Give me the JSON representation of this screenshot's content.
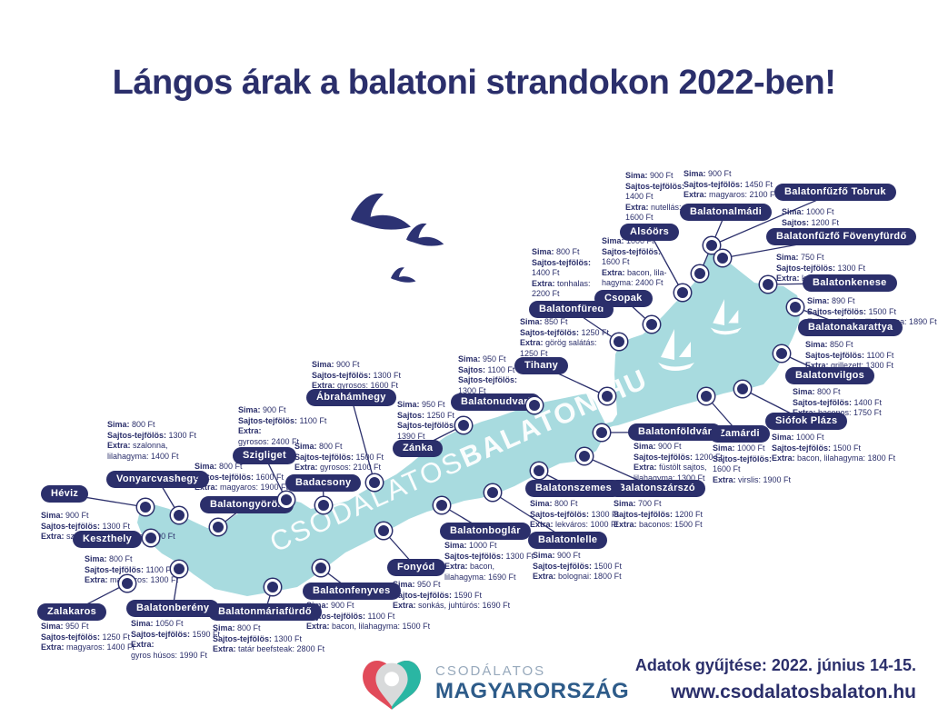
{
  "title": "Lángos árak a balatoni strandokon 2022-ben!",
  "watermark": {
    "light": "CSODALATOS",
    "bold": "BALATON.HU"
  },
  "footer": {
    "logo_top": "CSODÁLATOS",
    "logo_bottom": "MAGYARORSZÁG",
    "note": "Adatok gyűjtése: 2022. június 14-15.",
    "url": "www.csodalatosbalaton.hu"
  },
  "colors": {
    "navy": "#2b2f6b",
    "lake": "#a8dbdf",
    "logo_red": "#e14b5a",
    "logo_teal": "#2ab6a3",
    "logo_gray": "#d8dadb",
    "logo_top_text": "#97a9bc",
    "logo_bottom_text": "#2d5b89"
  },
  "locations": [
    {
      "name": "Héviz",
      "label": [
        45,
        534
      ],
      "dot": [
        160,
        558
      ],
      "text": [
        45,
        562
      ],
      "prices": [
        [
          "Sima:",
          "900 Ft"
        ],
        [
          "Sajtos-tejfölös:",
          "1300 Ft"
        ],
        [
          "Extra:",
          "szalonna, lilahagyma: 1500 Ft"
        ]
      ]
    },
    {
      "name": "Keszthely",
      "label": [
        80,
        584
      ],
      "dot": [
        166,
        592
      ],
      "text": [
        93,
        610
      ],
      "prices": [
        [
          "Sima:",
          "800 Ft"
        ],
        [
          "Sajtos-tejfölös:",
          "1100 Ft"
        ],
        [
          "Extra:",
          "magyaros: 1300 Ft"
        ]
      ]
    },
    {
      "name": "Vonyarcvashegy",
      "label": [
        117,
        518
      ],
      "dot": [
        197,
        567
      ],
      "text": [
        118,
        462
      ],
      "prices": [
        [
          "Sima:",
          "800 Ft"
        ],
        [
          "Sajtos-tejfölös:",
          "1300 Ft"
        ],
        [
          "Extra:",
          "szalonna,"
        ],
        [
          "",
          "lilahagyma: 1400 Ft"
        ]
      ]
    },
    {
      "name": "Balatongyörök",
      "label": [
        220,
        546
      ],
      "dot": [
        240,
        580
      ],
      "text": [
        214,
        508
      ],
      "prices": [
        [
          "Sima:",
          "800 Ft"
        ],
        [
          "Sajtos-tejfölös:",
          "1600 Ft"
        ],
        [
          "Extra:",
          "magyaros: 1900 Ft"
        ]
      ]
    },
    {
      "name": "Szigliget",
      "label": [
        256,
        492
      ],
      "dot": [
        315,
        550
      ],
      "text": [
        262,
        446
      ],
      "prices": [
        [
          "Sima:",
          "900 Ft"
        ],
        [
          "Sajtos-tejfölös:",
          "1100 Ft"
        ],
        [
          "Extra:",
          ""
        ],
        [
          "",
          "gyrosos: 2400 Ft"
        ]
      ]
    },
    {
      "name": "Badacsony",
      "label": [
        314,
        522
      ],
      "dot": [
        356,
        556
      ],
      "text": [
        324,
        486
      ],
      "prices": [
        [
          "Sima:",
          "800 Ft"
        ],
        [
          "Sajtos-tejfölös:",
          "1500 Ft"
        ],
        [
          "Extra:",
          "gyrosos: 2100 Ft"
        ]
      ]
    },
    {
      "name": "Ábrahámhegy",
      "label": [
        337,
        428
      ],
      "dot": [
        412,
        531
      ],
      "text": [
        343,
        396
      ],
      "prices": [
        [
          "Sima:",
          "900 Ft"
        ],
        [
          "Sajtos-tejfölös:",
          "1300 Ft"
        ],
        [
          "Extra:",
          "gyrosos: 1600 Ft"
        ]
      ]
    },
    {
      "name": "Zánka",
      "label": [
        432,
        484
      ],
      "dot": [
        510,
        468
      ],
      "text": [
        437,
        440
      ],
      "prices": [
        [
          "Sima:",
          "950 Ft"
        ],
        [
          "Sajtos:",
          "1250 Ft"
        ],
        [
          "Sajtos-tejfölös:",
          ""
        ],
        [
          "",
          "1390 Ft"
        ]
      ]
    },
    {
      "name": "Balatonudvari",
      "label": [
        496,
        433
      ],
      "dot": [
        588,
        446
      ],
      "text": [
        504,
        390
      ],
      "prices": [
        [
          "Sima:",
          "950 Ft"
        ],
        [
          "Sajtos:",
          "1100 Ft"
        ],
        [
          "Sajtos-tejfölös:",
          ""
        ],
        [
          "",
          "1300 Ft"
        ]
      ]
    },
    {
      "name": "Tihany",
      "label": [
        566,
        393
      ],
      "dot": [
        668,
        436
      ],
      "text": [
        572,
        349
      ],
      "prices": [
        [
          "Sima:",
          "850 Ft"
        ],
        [
          "Sajtos-tejfölös:",
          "1250 Ft"
        ],
        [
          "Extra:",
          "görög salátás:"
        ],
        [
          "",
          "1250 Ft"
        ]
      ]
    },
    {
      "name": "Balatonfüred",
      "label": [
        582,
        331
      ],
      "dot": [
        681,
        376
      ],
      "text": [
        585,
        272
      ],
      "prices": [
        [
          "Sima:",
          "800 Ft"
        ],
        [
          "Sajtos-tejfölös:",
          ""
        ],
        [
          "",
          "1400 Ft"
        ],
        [
          "Extra:",
          "tonhalas:"
        ],
        [
          "",
          "2200 Ft"
        ]
      ]
    },
    {
      "name": "Csopak",
      "label": [
        654,
        319
      ],
      "dot": [
        717,
        357
      ],
      "text": [
        662,
        260
      ],
      "prices": [
        [
          "Sima:",
          "1000 Ft"
        ],
        [
          "Sajtos-tejfölös:",
          ""
        ],
        [
          "",
          "1600 Ft"
        ],
        [
          "Extra:",
          "bacon, lila-"
        ],
        [
          "",
          "hagyma: 2400 Ft"
        ]
      ]
    },
    {
      "name": "Alsóörs",
      "label": [
        682,
        246
      ],
      "dot": [
        751,
        322
      ],
      "text": [
        688,
        188
      ],
      "prices": [
        [
          "Sima:",
          "900 Ft"
        ],
        [
          "Sajtos-tejfölös:",
          ""
        ],
        [
          "",
          "1400 Ft"
        ],
        [
          "Extra:",
          "nutellás:"
        ],
        [
          "",
          "1600 Ft"
        ]
      ]
    },
    {
      "name": "Balatonalmádi",
      "label": [
        748,
        224
      ],
      "dot": [
        770,
        301
      ],
      "text": [
        752,
        186
      ],
      "prices": [
        [
          "Sima:",
          "900 Ft"
        ],
        [
          "Sajtos-tejfölös:",
          "1450 Ft"
        ],
        [
          "Extra:",
          "magyaros: 2100 Ft"
        ]
      ]
    },
    {
      "name": "Balatonfűzfő Tobruk",
      "label": [
        852,
        202
      ],
      "dot": [
        783,
        270
      ],
      "text": [
        860,
        228
      ],
      "prices": [
        [
          "Sima:",
          "1000 Ft"
        ],
        [
          "Sajtos:",
          "1200 Ft"
        ],
        [
          "Sajtos-tejfölös:",
          "1300 Ft"
        ]
      ]
    },
    {
      "name": "Balatonfűzfő Fövenyfürdő",
      "label": [
        843,
        251
      ],
      "dot": [
        795,
        284
      ],
      "text": [
        854,
        278
      ],
      "prices": [
        [
          "Sima:",
          "750 Ft"
        ],
        [
          "Sajtos-tejfölös:",
          "1300 Ft"
        ],
        [
          "Extra:",
          "kolbászos: 1700 Ft"
        ]
      ]
    },
    {
      "name": "Balatonkenese",
      "label": [
        883,
        302
      ],
      "dot": [
        845,
        313
      ],
      "text": [
        888,
        326
      ],
      "prices": [
        [
          "Sima:",
          "890 Ft"
        ],
        [
          "Sajtos-tejfölös:",
          "1500 Ft"
        ],
        [
          "Extra:",
          "zöldség, lilahagyma: 1890 Ft"
        ]
      ]
    },
    {
      "name": "Balatonakarattya",
      "label": [
        878,
        351
      ],
      "dot": [
        875,
        338
      ],
      "text": [
        886,
        374
      ],
      "prices": [
        [
          "Sima:",
          "850 Ft"
        ],
        [
          "Sajtos-tejfölös:",
          "1100 Ft"
        ],
        [
          "Extra:",
          "grillezett: 1300 Ft"
        ]
      ]
    },
    {
      "name": "Balatonvilgos",
      "label": [
        864,
        404
      ],
      "dot": [
        860,
        389
      ],
      "text": [
        872,
        426
      ],
      "prices": [
        [
          "Sima:",
          "800 Ft"
        ],
        [
          "Sajtos-tejfölös:",
          "1400 Ft"
        ],
        [
          "Extra:",
          "baconos: 1750 Ft"
        ]
      ]
    },
    {
      "name": "Siófok Plázs",
      "label": [
        842,
        454
      ],
      "dot": [
        817,
        428
      ],
      "text": [
        849,
        476
      ],
      "prices": [
        [
          "Sima:",
          "1000 Ft"
        ],
        [
          "Sajtos-tejfölös:",
          "1500 Ft"
        ],
        [
          "Extra:",
          "bacon, lilahagyma: 1800 Ft"
        ]
      ]
    },
    {
      "name": "Zamárdi",
      "label": [
        780,
        468
      ],
      "dot": [
        777,
        436
      ],
      "text": [
        784,
        488
      ],
      "prices": [
        [
          "Sima:",
          "1000 Ft"
        ],
        [
          "Sajtos-tejfölös:",
          ""
        ],
        [
          "",
          "1600 Ft"
        ],
        [
          "Extra:",
          "virslis: 1900 Ft"
        ]
      ]
    },
    {
      "name": "Balatonföldvár",
      "label": [
        691,
        466
      ],
      "dot": [
        662,
        476
      ],
      "text": [
        697,
        486
      ],
      "prices": [
        [
          "Sima:",
          "900 Ft"
        ],
        [
          "Sajtos-tejfölös:",
          "1200 Ft"
        ],
        [
          "Extra:",
          "füstölt sajtos,"
        ],
        [
          "",
          "lilahagyma: 1300 Ft"
        ]
      ]
    },
    {
      "name": "Balatonszárszó",
      "label": [
        669,
        528
      ],
      "dot": [
        643,
        502
      ],
      "text": [
        675,
        549
      ],
      "prices": [
        [
          "Sima:",
          "700 Ft"
        ],
        [
          "Sajtos-tejfölös:",
          "1200 Ft"
        ],
        [
          "Extra:",
          "baconos: 1500 Ft"
        ]
      ]
    },
    {
      "name": "Balatonszemes",
      "label": [
        578,
        528
      ],
      "dot": [
        593,
        518
      ],
      "text": [
        583,
        549
      ],
      "prices": [
        [
          "Sima:",
          "800 Ft"
        ],
        [
          "Sajtos-tejfölös:",
          "1300 Ft"
        ],
        [
          "Extra:",
          "lekváros: 1000 Ft"
        ]
      ]
    },
    {
      "name": "Balatonlelle",
      "label": [
        581,
        585
      ],
      "dot": [
        542,
        542
      ],
      "text": [
        586,
        606
      ],
      "prices": [
        [
          "Sima:",
          "900 Ft"
        ],
        [
          "Sajtos-tejfölös:",
          "1500 Ft"
        ],
        [
          "Extra:",
          "bolognai: 1800 Ft"
        ]
      ]
    },
    {
      "name": "Balatonboglár",
      "label": [
        484,
        575
      ],
      "dot": [
        486,
        556
      ],
      "text": [
        489,
        595
      ],
      "prices": [
        [
          "Sima:",
          "1000 Ft"
        ],
        [
          "Sajtos-tejfölös:",
          "1300 Ft"
        ],
        [
          "Extra:",
          "bacon,"
        ],
        [
          "",
          "lilahagyma: 1690 Ft"
        ]
      ]
    },
    {
      "name": "Fonyód",
      "label": [
        426,
        615
      ],
      "dot": [
        422,
        584
      ],
      "text": [
        432,
        638
      ],
      "prices": [
        [
          "Sima:",
          "950 Ft"
        ],
        [
          "Sajtos-tejfölös:",
          "1590 Ft"
        ],
        [
          "Extra:",
          "sonkás, juhtúrós: 1690 Ft"
        ]
      ]
    },
    {
      "name": "Balatonfenyves",
      "label": [
        333,
        641
      ],
      "dot": [
        353,
        625
      ],
      "text": [
        337,
        661
      ],
      "prices": [
        [
          "Sima:",
          "900 Ft"
        ],
        [
          "Sajtos-tejfölös:",
          "1100 Ft"
        ],
        [
          "Extra:",
          "bacon, lilahagyma: 1500 Ft"
        ]
      ]
    },
    {
      "name": "Balatonmáriafürdő",
      "label": [
        229,
        664
      ],
      "dot": [
        300,
        646
      ],
      "text": [
        234,
        686
      ],
      "prices": [
        [
          "Sima:",
          "800 Ft"
        ],
        [
          "Sajtos-tejfölös:",
          "1300 Ft"
        ],
        [
          "Extra:",
          "tatár beefsteak: 2800 Ft"
        ]
      ]
    },
    {
      "name": "Balatonberény",
      "label": [
        139,
        660
      ],
      "dot": [
        197,
        626
      ],
      "text": [
        144,
        681
      ],
      "prices": [
        [
          "Sima:",
          "1050 Ft"
        ],
        [
          "Sajtos-tejfölös:",
          "1590 Ft"
        ],
        [
          "Extra:",
          ""
        ],
        [
          "",
          "gyros húsos: 1990 Ft"
        ]
      ]
    },
    {
      "name": "Zalakaros",
      "label": [
        41,
        664
      ],
      "dot": [
        140,
        642
      ],
      "text": [
        45,
        684
      ],
      "prices": [
        [
          "Sima:",
          "950 Ft"
        ],
        [
          "Sajtos-tejfölös:",
          "1250 Ft"
        ],
        [
          "Extra:",
          "magyaros: 1400 Ft"
        ]
      ]
    }
  ]
}
